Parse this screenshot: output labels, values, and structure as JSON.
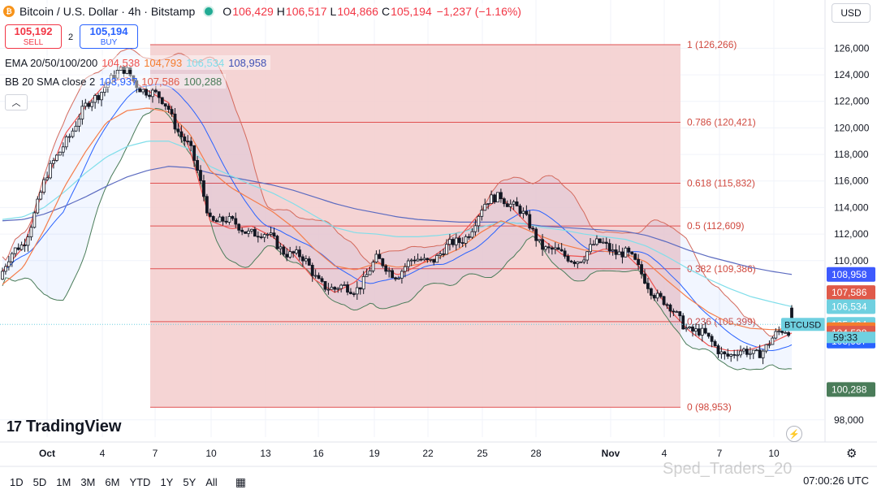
{
  "header": {
    "coin_symbol": "₿",
    "title": "Bitcoin / U.S. Dollar · 4h · Bitstamp",
    "o_label": "O",
    "o_value": "106,429",
    "h_label": "H",
    "h_value": "106,517",
    "l_label": "L",
    "l_value": "104,866",
    "c_label": "C",
    "c_value": "105,194",
    "change": "−1,237 (−1.16%)"
  },
  "trade": {
    "sell_price": "105,192",
    "sell_label": "SELL",
    "spread": "2",
    "buy_price": "105,194",
    "buy_label": "BUY"
  },
  "indicators": {
    "ema_label": "EMA 20/50/100/200",
    "ema_values": [
      "104,538",
      "104,793",
      "106,534",
      "108,958"
    ],
    "bb_label": "BB 20 SMA close 2",
    "bb_values": [
      "103,937",
      "107,586",
      "100,288"
    ]
  },
  "currency": "USD",
  "brand": "TradingView",
  "timeframes": [
    "1D",
    "5D",
    "1M",
    "3M",
    "6M",
    "YTD",
    "1Y",
    "5Y",
    "All"
  ],
  "clock": "07:00:26 UTC",
  "watermark": "Sped_Traders_20",
  "colors": {
    "up": "#131722",
    "down": "#131722",
    "ema20": "#ef5350",
    "ema50": "#f57c4a",
    "ema100": "#80deea",
    "ema200": "#5c6bc0",
    "bb_basis": "#2962ff",
    "bb_bands": "#d46a5d",
    "bb_lower": "#4a7c59",
    "fib_zone": "#f3cccc",
    "fib_line": "#e05050"
  },
  "chart_data": {
    "type": "candlestick",
    "title": "Bitcoin / U.S. Dollar · 4h · Bitstamp",
    "y_ticks": [
      98000,
      110000,
      112000,
      114000,
      116000,
      118000,
      120000,
      122000,
      124000,
      126000
    ],
    "ylim": [
      96700,
      127800
    ],
    "x_ticks": [
      "Oct",
      "4",
      "7",
      "10",
      "13",
      "16",
      "19",
      "22",
      "25",
      "28",
      "Nov",
      "4",
      "7",
      "10"
    ],
    "fibonacci": [
      {
        "label": "1 (126,266)",
        "value": 126266
      },
      {
        "label": "0.786 (120,421)",
        "value": 120421
      },
      {
        "label": "0.618 (115,832)",
        "value": 115832
      },
      {
        "label": "0.5 (112,609)",
        "value": 112609
      },
      {
        "label": "0.382 (109,386)",
        "value": 109386
      },
      {
        "label": "0.236 (105,399)",
        "value": 105399
      },
      {
        "label": "0 (98,953)",
        "value": 98953
      }
    ],
    "series": [
      {
        "name": "EMA 20",
        "closes_sampled": [
          109200,
          111000,
          115500,
          119500,
          121600,
          123400,
          123800,
          122800,
          121900,
          118500,
          113000,
          112400,
          112600,
          111800,
          110500,
          108600,
          107600,
          108400,
          110000,
          108900,
          109600,
          110600,
          111800,
          113600,
          114800,
          113200,
          111600,
          110400,
          110300,
          110900,
          110500,
          109000,
          106500,
          104800,
          103600,
          103200,
          103300,
          103800,
          104538
        ]
      },
      {
        "name": "EMA 50",
        "closes_sampled": [
          108200,
          109500,
          112300,
          115600,
          118200,
          120400,
          121300,
          121500,
          121200,
          119600,
          116800,
          115500,
          114600,
          113700,
          112500,
          110900,
          109600,
          109300,
          109800,
          109500,
          109700,
          110200,
          110900,
          112100,
          113000,
          112500,
          111800,
          111200,
          110800,
          110700,
          110500,
          109900,
          108500,
          107200,
          106100,
          105300,
          104900,
          104800,
          104793
        ]
      },
      {
        "name": "EMA 100",
        "closes_sampled": [
          113100,
          113300,
          114000,
          115200,
          116600,
          117800,
          118600,
          119000,
          119000,
          118400,
          117100,
          116400,
          115700,
          115100,
          114300,
          113400,
          112500,
          112100,
          112000,
          111800,
          111800,
          111900,
          112100,
          112500,
          112900,
          112800,
          112500,
          112300,
          112000,
          111800,
          111600,
          111100,
          110300,
          109400,
          108600,
          107900,
          107300,
          106900,
          106534
        ]
      },
      {
        "name": "EMA 200",
        "closes_sampled": [
          113000,
          113100,
          113500,
          114100,
          114800,
          115600,
          116300,
          116800,
          117100,
          117000,
          116600,
          116300,
          116000,
          115700,
          115300,
          114800,
          114300,
          113900,
          113600,
          113300,
          113100,
          113000,
          112900,
          112900,
          112900,
          112800,
          112600,
          112500,
          112400,
          112300,
          112200,
          111900,
          111400,
          110800,
          110300,
          109900,
          109500,
          109200,
          108958
        ]
      }
    ],
    "last_price": {
      "label": "BTCUSD",
      "value": 105194,
      "countdown": "59:33"
    },
    "price_tags": [
      {
        "value": 108958,
        "text": "108,958",
        "color": "#3d5afe"
      },
      {
        "value": 107586,
        "text": "107,586",
        "color": "#e05a4a"
      },
      {
        "value": 106534,
        "text": "106,534",
        "color": "#6fd0e0"
      },
      {
        "value": 105194,
        "text": "105,194",
        "color": "#6fd0e0"
      },
      {
        "value": 104793,
        "text": "104,793",
        "color": "#f57c2e"
      },
      {
        "value": 104538,
        "text": "104,538",
        "color": "#e05a4a"
      },
      {
        "value": 103937,
        "text": "103,937",
        "color": "#2962ff"
      },
      {
        "value": 100288,
        "text": "100,288",
        "color": "#4a7c59"
      }
    ]
  }
}
